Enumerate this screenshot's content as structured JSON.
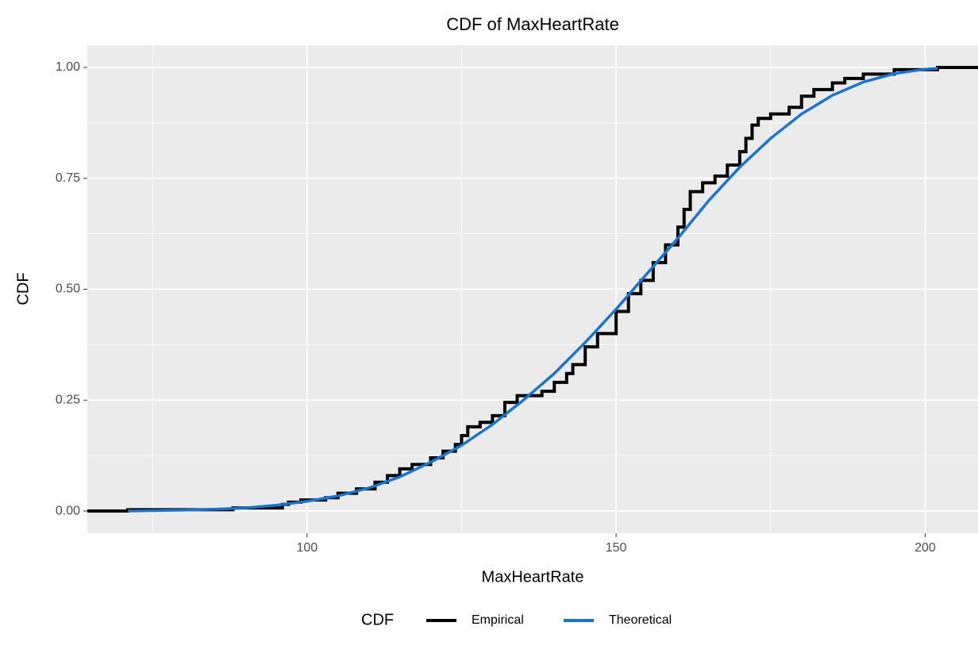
{
  "chart_data": {
    "type": "ecdf",
    "title": "CDF of MaxHeartRate",
    "x_label": "MaxHeartRate",
    "y_label": "CDF",
    "legend_title": "CDF",
    "legend": "bottom",
    "grid": true,
    "xlim": [
      64.45,
      208.55
    ],
    "ylim": [
      -0.05,
      1.05
    ],
    "xticks": [
      100,
      150,
      200
    ],
    "xminor": [
      75,
      125,
      175
    ],
    "yticks": [
      {
        "value": 0,
        "label": "0.00"
      },
      {
        "value": 0.25,
        "label": "0.25"
      },
      {
        "value": 0.5,
        "label": "0.50"
      },
      {
        "value": 0.75,
        "label": "0.75"
      },
      {
        "value": 1,
        "label": "1.00"
      }
    ],
    "yminor": [
      0.125,
      0.375,
      0.625,
      0.875
    ],
    "series": [
      {
        "name": "Empirical",
        "color": "#000000",
        "style": "step",
        "x": [
          71,
          88,
          96,
          97,
          99,
          103,
          105,
          108,
          111,
          113,
          115,
          117,
          120,
          122,
          124,
          125,
          126,
          128,
          130,
          132,
          134,
          138,
          140,
          142,
          143,
          145,
          147,
          150,
          152,
          154,
          156,
          158,
          160,
          161,
          162,
          164,
          166,
          168,
          170,
          171,
          172,
          173,
          175,
          178,
          180,
          182,
          185,
          187,
          190,
          195,
          202
        ],
        "values": [
          0.003,
          0.007,
          0.015,
          0.02,
          0.025,
          0.03,
          0.04,
          0.05,
          0.065,
          0.08,
          0.095,
          0.105,
          0.12,
          0.135,
          0.15,
          0.17,
          0.19,
          0.2,
          0.215,
          0.245,
          0.26,
          0.27,
          0.29,
          0.31,
          0.33,
          0.37,
          0.4,
          0.45,
          0.49,
          0.52,
          0.56,
          0.6,
          0.64,
          0.68,
          0.72,
          0.74,
          0.755,
          0.78,
          0.81,
          0.84,
          0.87,
          0.885,
          0.895,
          0.91,
          0.935,
          0.95,
          0.965,
          0.975,
          0.985,
          0.995,
          1.0
        ]
      },
      {
        "name": "Theoretical",
        "color": "#1874cd",
        "style": "line",
        "x": [
          71,
          75,
          80,
          85,
          90,
          95,
          100,
          105,
          110,
          115,
          120,
          125,
          130,
          135,
          140,
          145,
          150,
          155,
          160,
          165,
          170,
          175,
          180,
          185,
          190,
          195,
          200,
          202
        ],
        "values": [
          0,
          0.001,
          0.002,
          0.004,
          0.007,
          0.013,
          0.022,
          0.034,
          0.052,
          0.077,
          0.11,
          0.148,
          0.195,
          0.25,
          0.31,
          0.38,
          0.455,
          0.535,
          0.615,
          0.7,
          0.775,
          0.84,
          0.895,
          0.937,
          0.967,
          0.986,
          0.996,
          0.998
        ]
      }
    ]
  }
}
